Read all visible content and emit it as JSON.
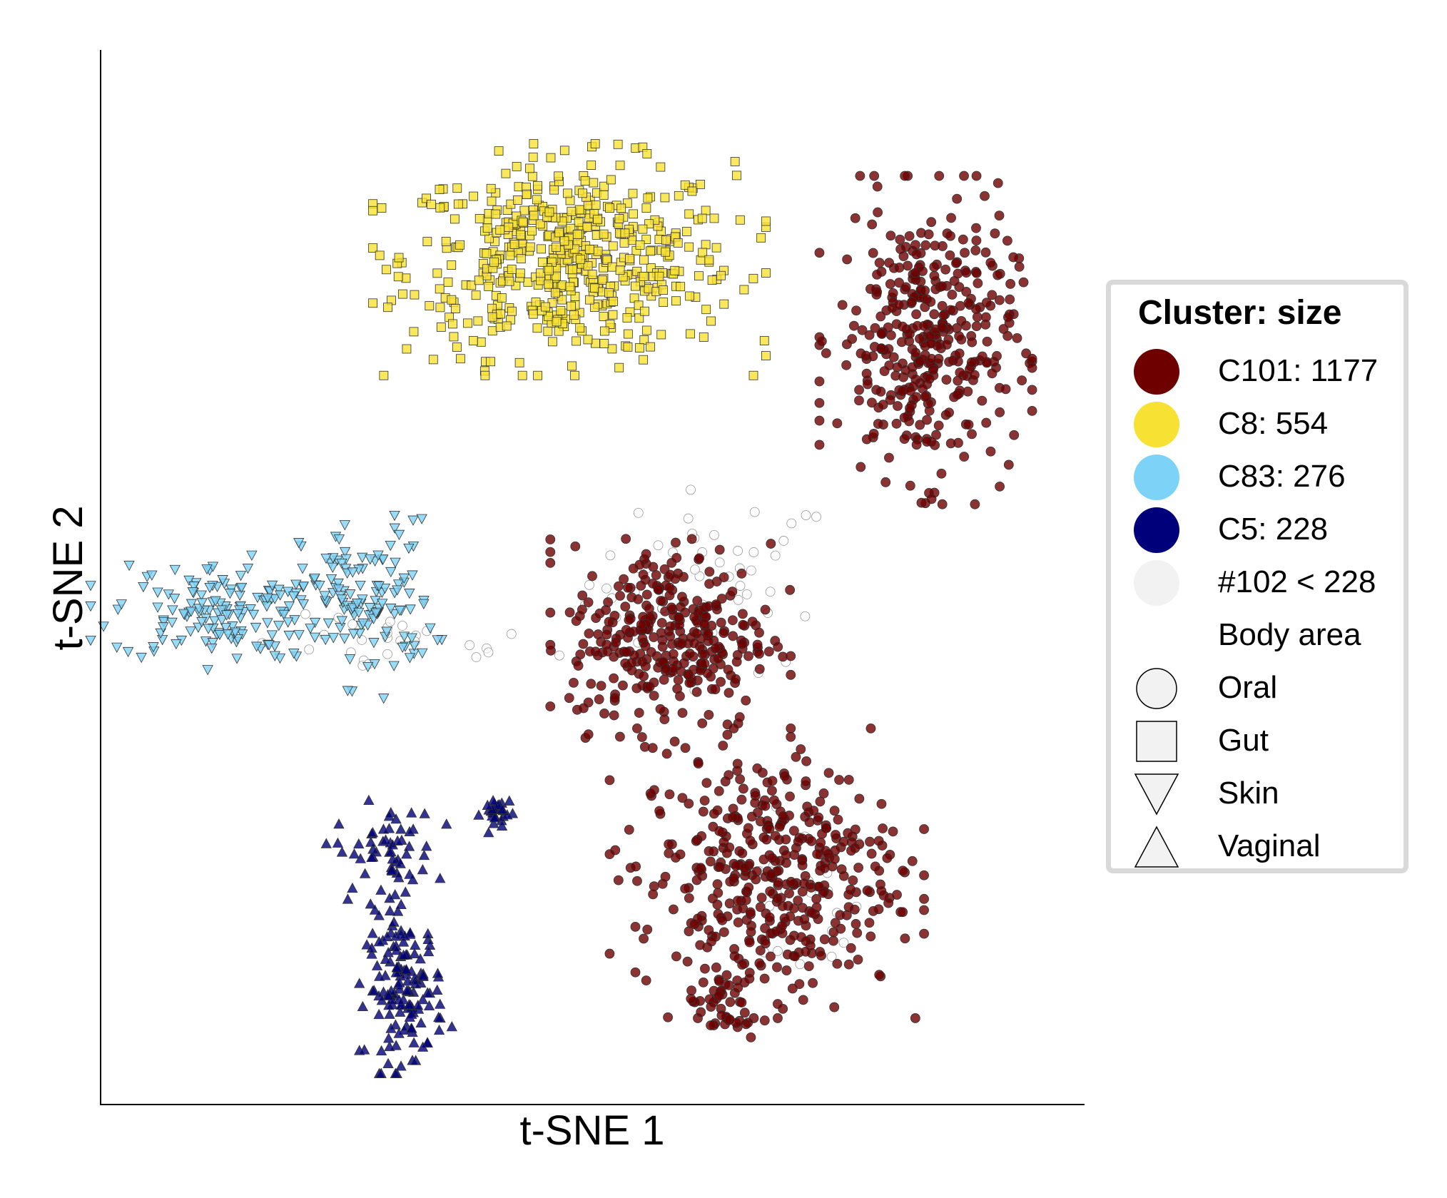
{
  "chart_data": {
    "type": "scatter",
    "xlabel": "t-SNE 1",
    "ylabel": "t-SNE 2",
    "xlim": [
      0,
      100
    ],
    "ylim": [
      0,
      100
    ],
    "grid": false,
    "legend_placement": "right",
    "legend": {
      "title": "Cluster: size",
      "clusters": [
        {
          "label": "C101: 1177",
          "color": "#6e0000"
        },
        {
          "label": "C8: 554",
          "color": "#f7e133"
        },
        {
          "label": "C83: 276",
          "color": "#7dd3f7"
        },
        {
          "label": "C5: 228",
          "color": "#00007a"
        },
        {
          "label": "#102 < 228",
          "color": "#f2f2f2"
        }
      ],
      "shape_header": "Body area",
      "shapes": [
        {
          "label": "Oral",
          "marker": "circle"
        },
        {
          "label": "Gut",
          "marker": "square"
        },
        {
          "label": "Skin",
          "marker": "triangle-down"
        },
        {
          "label": "Vaginal",
          "marker": "triangle-up"
        }
      ]
    },
    "series": [
      {
        "cluster": "C101",
        "color": "#6e0000",
        "marker": "circle",
        "count": 1177,
        "regions": [
          {
            "cx": 85.0,
            "cy": 74.0,
            "sx": 4.6,
            "sy": 6.8,
            "n": 380
          },
          {
            "cx": 58.5,
            "cy": 44.5,
            "sx": 5.2,
            "sy": 4.6,
            "n": 330
          },
          {
            "cx": 68.5,
            "cy": 21.0,
            "sx": 6.8,
            "sy": 6.0,
            "n": 420
          },
          {
            "cx": 64.0,
            "cy": 8.0,
            "sx": 1.8,
            "sy": 2.0,
            "n": 47
          }
        ]
      },
      {
        "cluster": "C8",
        "color": "#f7e133",
        "marker": "square",
        "count": 554,
        "regions": [
          {
            "cx": 48.0,
            "cy": 82.0,
            "sx": 8.5,
            "sy": 4.8,
            "n": 554
          }
        ]
      },
      {
        "cluster": "C83",
        "color": "#7dd3f7",
        "marker": "triangle-down",
        "count": 276,
        "regions": [
          {
            "cx": 11.5,
            "cy": 47.0,
            "sx": 5.5,
            "sy": 2.4,
            "n": 150
          },
          {
            "cx": 27.0,
            "cy": 48.0,
            "sx": 3.4,
            "sy": 4.0,
            "n": 126
          }
        ]
      },
      {
        "cluster": "C5",
        "color": "#00007a",
        "marker": "triangle-up",
        "count": 228,
        "regions": [
          {
            "cx": 29.0,
            "cy": 23.0,
            "sx": 2.6,
            "sy": 2.4,
            "n": 60
          },
          {
            "cx": 31.0,
            "cy": 9.5,
            "sx": 2.0,
            "sy": 3.5,
            "n": 140
          },
          {
            "cx": 40.5,
            "cy": 27.0,
            "sx": 0.8,
            "sy": 0.9,
            "n": 28
          }
        ]
      },
      {
        "cluster": "#102 < 228",
        "color": "#f2f2f2",
        "marker": "circle",
        "count": 102,
        "regions": [
          {
            "cx": 63.0,
            "cy": 50.0,
            "sx": 6.5,
            "sy": 4.5,
            "n": 50
          },
          {
            "cx": 72.0,
            "cy": 18.0,
            "sx": 4.0,
            "sy": 4.0,
            "n": 25
          },
          {
            "cx": 30.0,
            "cy": 43.5,
            "sx": 8.0,
            "sy": 1.5,
            "n": 27
          }
        ]
      }
    ]
  }
}
